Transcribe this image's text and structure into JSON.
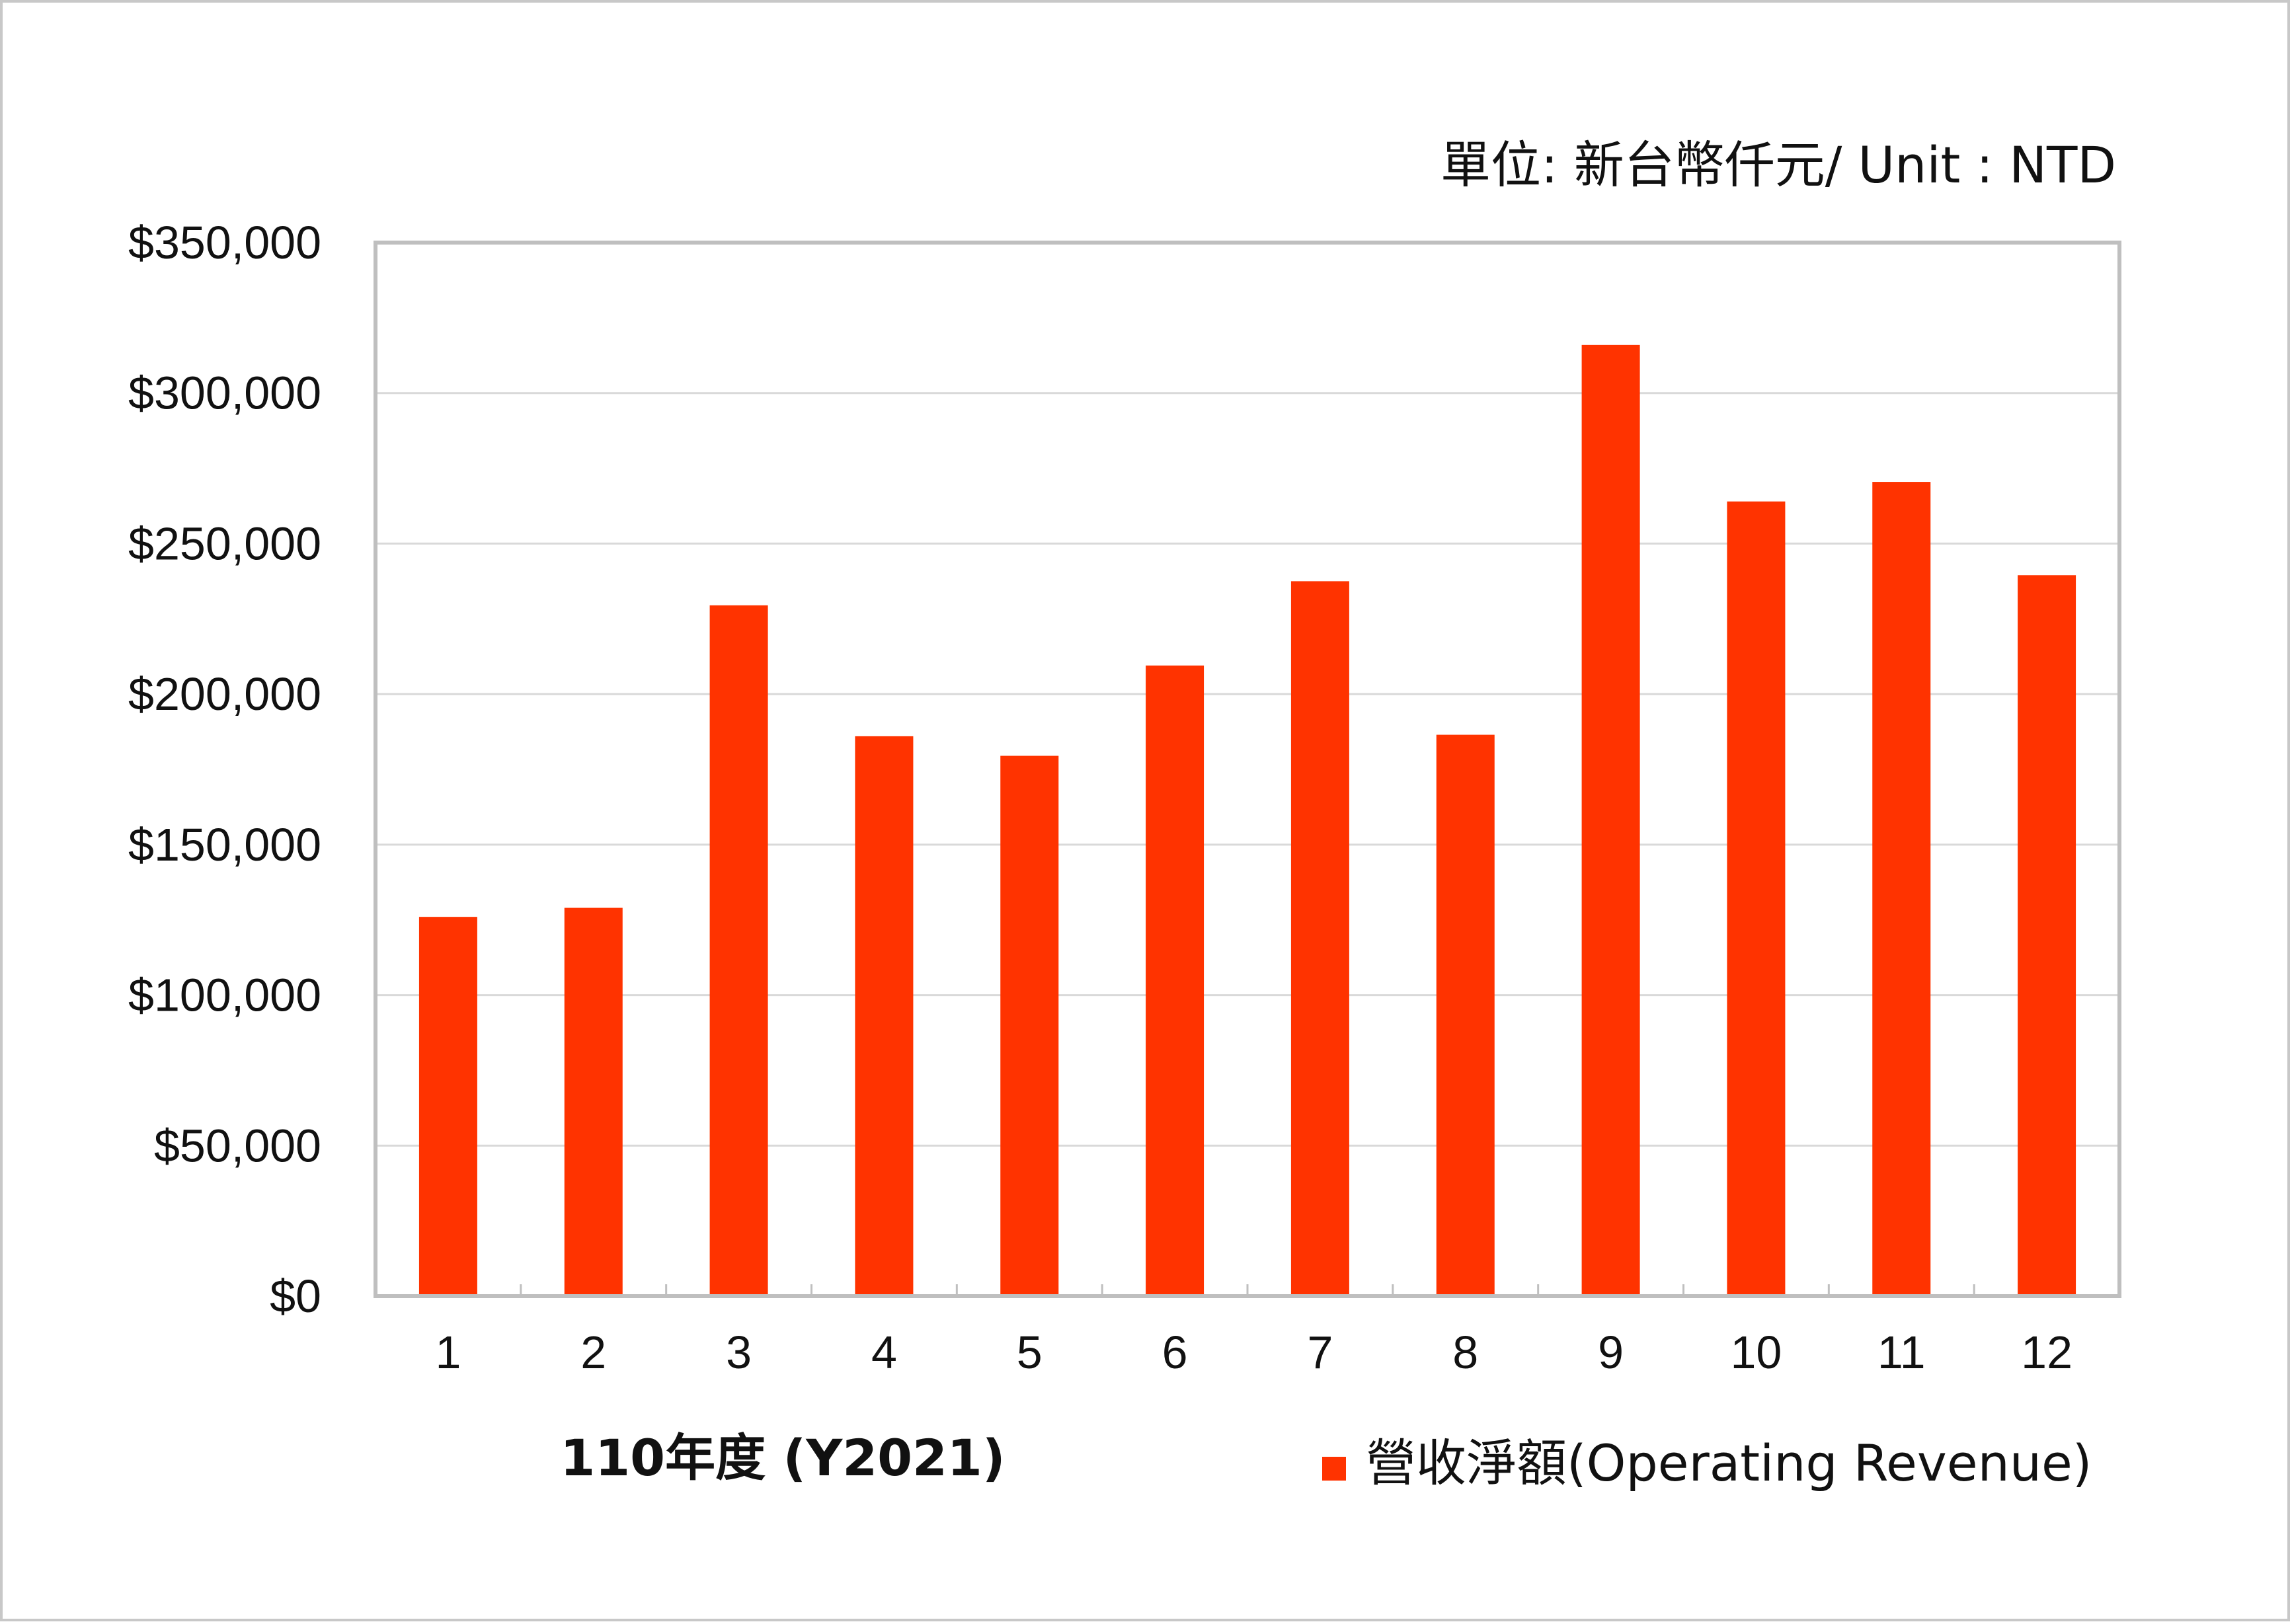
{
  "chart_data": {
    "type": "bar",
    "unit_note": "單位: 新台幣仟元/ Unit : NTD",
    "xlabel": "110年度 (Y2021)",
    "ylabel": "",
    "categories": [
      "1",
      "2",
      "3",
      "4",
      "5",
      "6",
      "7",
      "8",
      "9",
      "10",
      "11",
      "12"
    ],
    "series": [
      {
        "name": "營收淨額(Operating Revenue)",
        "color": "#ff3300",
        "values": [
          126000,
          129000,
          229500,
          186000,
          179500,
          209500,
          237500,
          186500,
          316000,
          264000,
          270500,
          239500
        ]
      }
    ],
    "ylim": [
      0,
      350000
    ],
    "yticks": [
      0,
      50000,
      100000,
      150000,
      200000,
      250000,
      300000,
      350000
    ],
    "ytick_labels": [
      "$0",
      "$50,000",
      "$100,000",
      "$150,000",
      "$200,000",
      "$250,000",
      "$300,000",
      "$350,000"
    ],
    "grid": true,
    "legend_position": "bottom-right",
    "plot_border_color": "#bfbfbf",
    "gridline_color": "#d9d9d9"
  }
}
